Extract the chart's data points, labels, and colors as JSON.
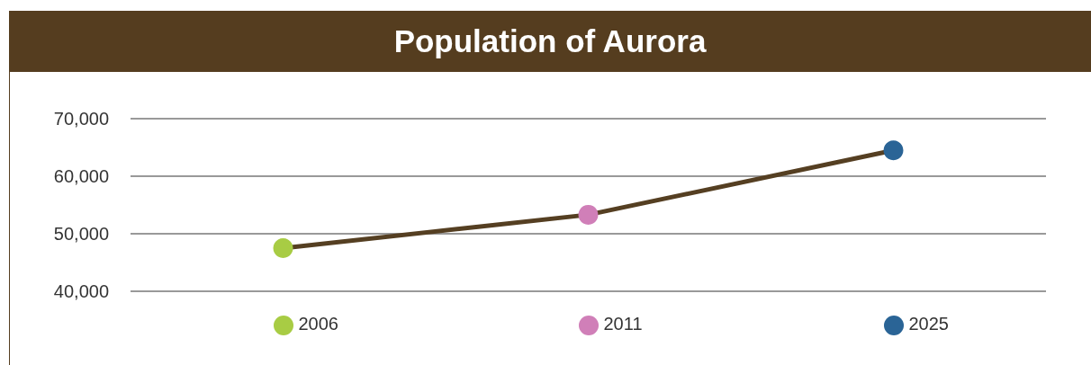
{
  "chart_data": {
    "type": "line",
    "title": "Population of Aurora",
    "categories": [
      "2006",
      "2011",
      "2025"
    ],
    "series": [
      {
        "color": "#553f22",
        "colors": [
          "#a8cc44",
          "#d07fb8",
          "#2a6496"
        ],
        "values": [
          47500,
          53300,
          64500
        ]
      }
    ],
    "ylim": [
      40000,
      70000
    ],
    "yticks": [
      {
        "value": 40000,
        "label": "40,000"
      },
      {
        "value": 50000,
        "label": "50,000"
      },
      {
        "value": 60000,
        "label": "60,000"
      },
      {
        "value": 70000,
        "label": "70,000"
      }
    ],
    "grid": "y",
    "marker": "circle",
    "line_style": "solid"
  }
}
